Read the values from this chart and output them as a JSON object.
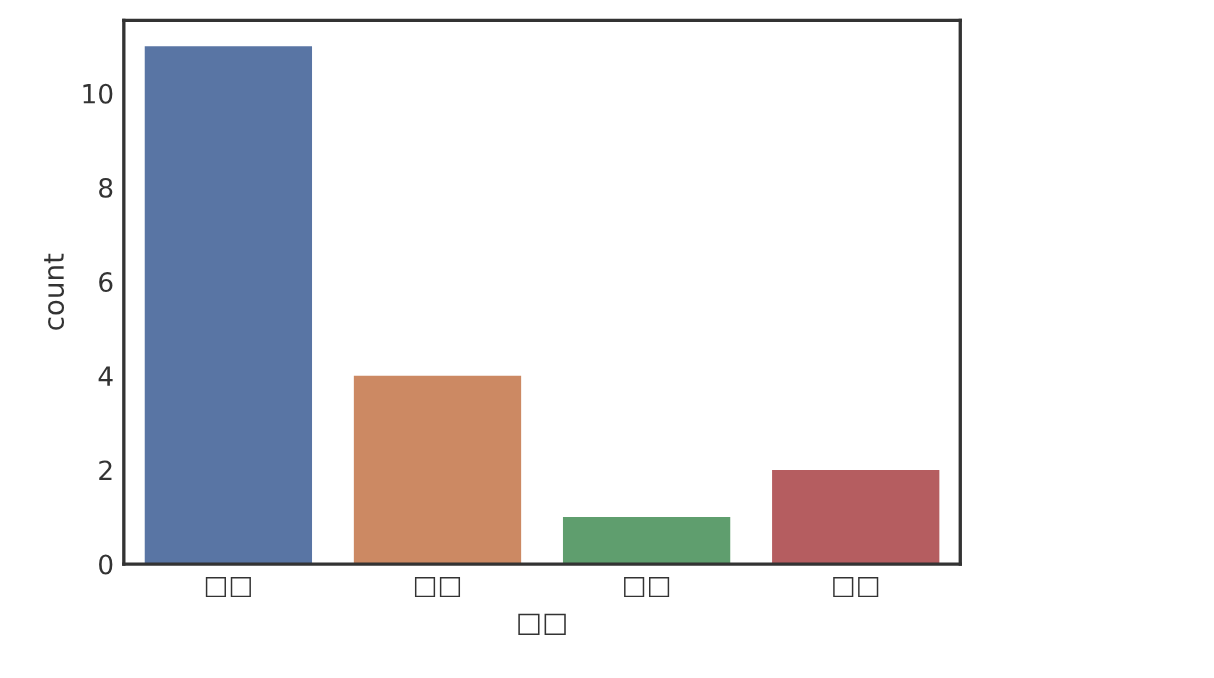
{
  "chart_data": {
    "type": "bar",
    "xlabel": "□□",
    "ylabel": "count",
    "categories": [
      "□□",
      "□□",
      "□□",
      "□□"
    ],
    "values": [
      11,
      4,
      1,
      2
    ],
    "colors": [
      "#5975a4",
      "#cc8963",
      "#5f9e6e",
      "#b55d60"
    ],
    "ylim": [
      0,
      11.55
    ],
    "yticks": [
      0,
      2,
      4,
      6,
      8,
      10
    ],
    "grid": false
  }
}
